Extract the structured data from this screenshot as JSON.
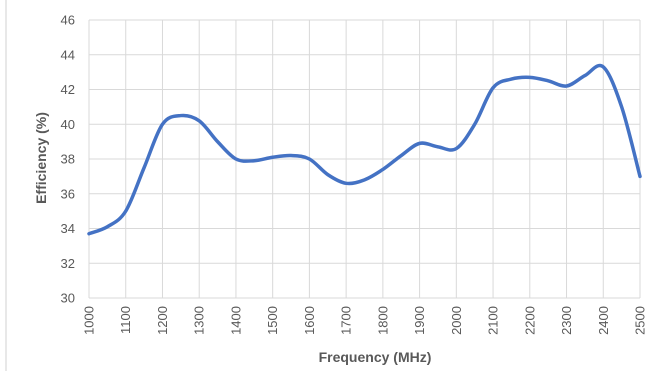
{
  "chart_data": {
    "type": "line",
    "xlabel": "Frequency (MHz)",
    "ylabel": "Efficiency (%)",
    "xlim": [
      1000,
      2500
    ],
    "ylim": [
      30,
      46
    ],
    "xticks": [
      1000,
      1100,
      1200,
      1300,
      1400,
      1500,
      1600,
      1700,
      1800,
      1900,
      2000,
      2100,
      2200,
      2300,
      2400,
      2500
    ],
    "yticks": [
      30,
      32,
      34,
      36,
      38,
      40,
      42,
      44,
      46
    ],
    "grid": true,
    "legend": "none",
    "line_color": "#4472C4",
    "series": [
      {
        "x": [
          1000,
          1050,
          1100,
          1150,
          1200,
          1250,
          1300,
          1350,
          1400,
          1450,
          1500,
          1550,
          1600,
          1650,
          1700,
          1750,
          1800,
          1850,
          1900,
          1950,
          2000,
          2050,
          2100,
          2150,
          2200,
          2250,
          2300,
          2350,
          2400,
          2450,
          2500
        ],
        "y": [
          33.7,
          34.1,
          35.0,
          37.5,
          40.0,
          40.5,
          40.2,
          39.0,
          38.0,
          37.9,
          38.1,
          38.2,
          38.0,
          37.1,
          36.6,
          36.8,
          37.4,
          38.2,
          38.9,
          38.7,
          38.6,
          40.0,
          42.1,
          42.6,
          42.7,
          42.5,
          42.2,
          42.8,
          43.3,
          41.0,
          37.0
        ]
      }
    ]
  }
}
